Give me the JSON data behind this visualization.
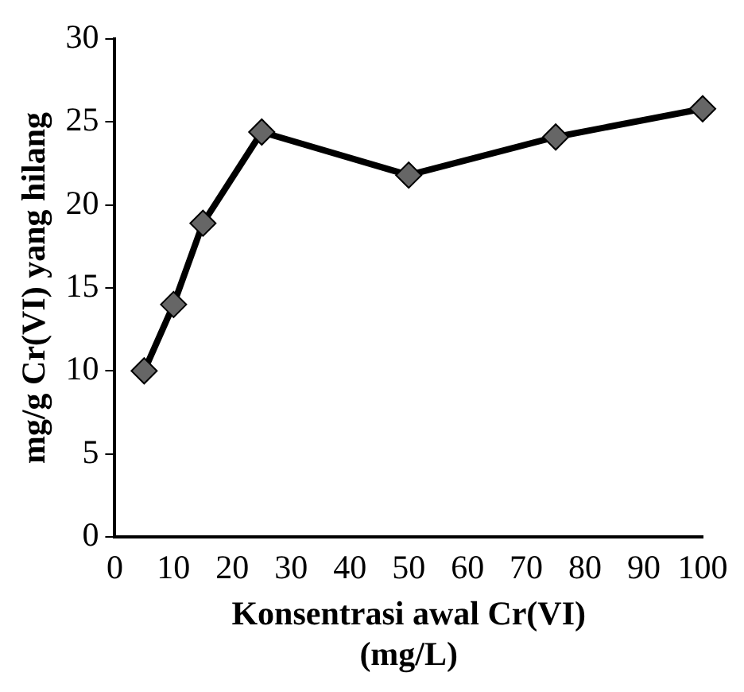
{
  "chart_data": {
    "type": "line",
    "xlabel": "Konsentrasi awal Cr(VI) (mg/L)",
    "ylabel": "mg/g Cr(VI) yang hilang",
    "x": [
      5,
      10,
      15,
      25,
      50,
      75,
      100
    ],
    "series": [
      {
        "color": "#000000",
        "values": [
          10,
          14,
          18.9,
          24.4,
          21.8,
          24.1,
          25.8
        ]
      }
    ],
    "xlim": [
      0,
      100
    ],
    "xticks": [
      0,
      10,
      20,
      30,
      40,
      50,
      60,
      70,
      80,
      90,
      100
    ],
    "ylim": [
      0,
      30
    ],
    "yticks": [
      0,
      5,
      10,
      15,
      20,
      25,
      30
    ],
    "grid": false,
    "legend": false,
    "marker": "diamond",
    "line_style": "solid"
  }
}
